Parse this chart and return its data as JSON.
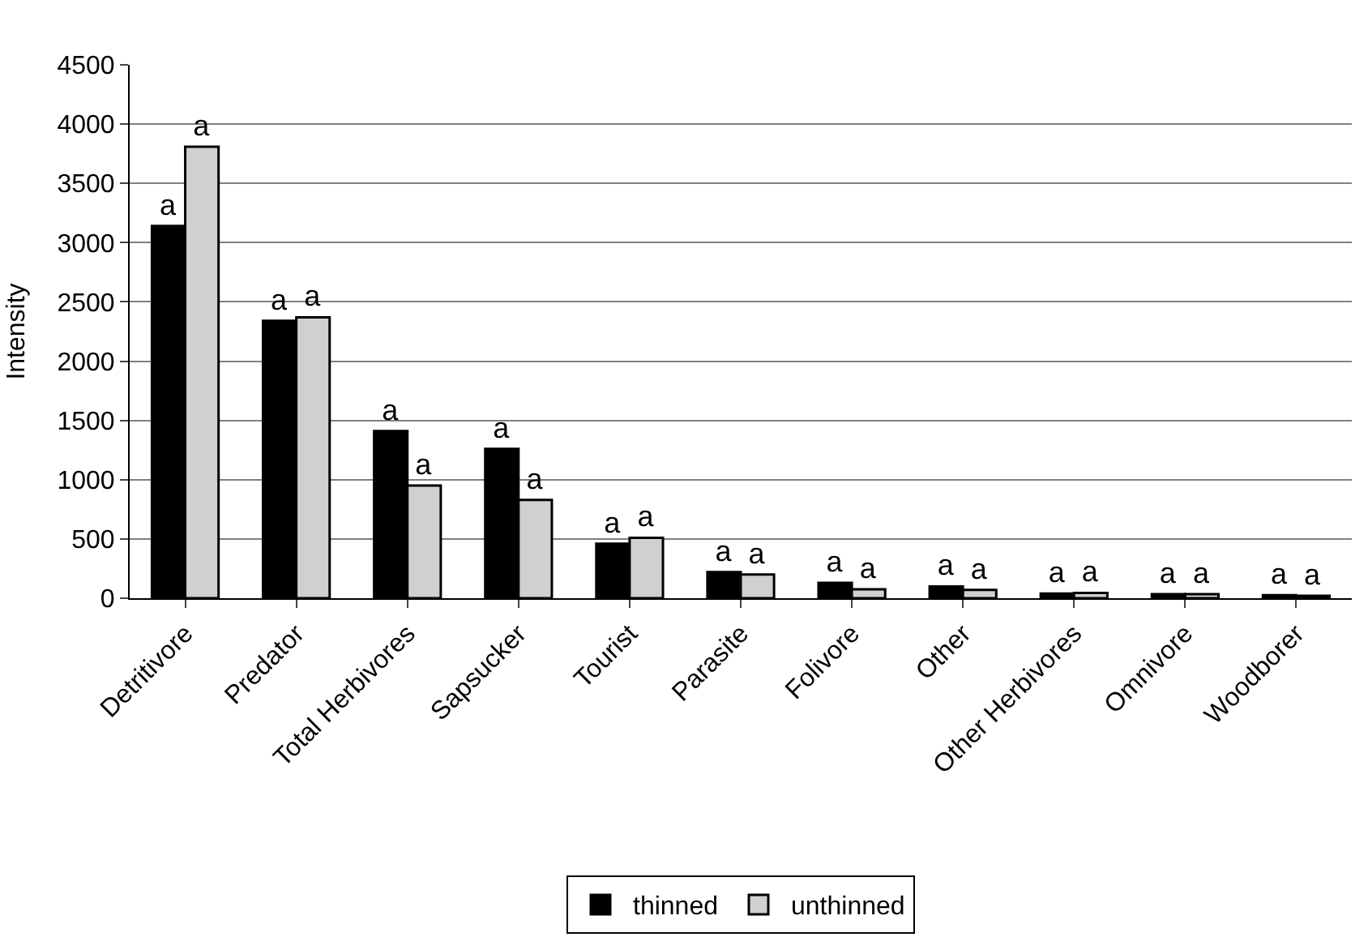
{
  "chart_data": {
    "type": "bar",
    "ylabel": "Intensity",
    "categories": [
      "Detritivore",
      "Predator",
      "Total Herbivores",
      "Sapsucker",
      "Tourist",
      "Parasite",
      "Folivore",
      "Other",
      "Other Herbivores",
      "Omnivore",
      "Woodborer"
    ],
    "series": [
      {
        "name": "thinned",
        "color": "#000000",
        "values": [
          3140,
          2340,
          1410,
          1260,
          460,
          220,
          130,
          100,
          40,
          35,
          25
        ],
        "value_labels": [
          "a",
          "a",
          "a",
          "a",
          "a",
          "a",
          "a",
          "a",
          "a",
          "a",
          "a"
        ]
      },
      {
        "name": "unthinned",
        "color": "#d0d0d0",
        "values": [
          3810,
          2370,
          950,
          830,
          510,
          200,
          75,
          70,
          45,
          35,
          20
        ],
        "value_labels": [
          "a",
          "a",
          "a",
          "a",
          "a",
          "a",
          "a",
          "a",
          "a",
          "a",
          "a"
        ]
      }
    ],
    "ylim": [
      0,
      4500
    ],
    "yticks": [
      0,
      500,
      1000,
      1500,
      2000,
      2500,
      3000,
      3500,
      4000,
      4500
    ],
    "grid": "y",
    "legend": "bottom"
  }
}
